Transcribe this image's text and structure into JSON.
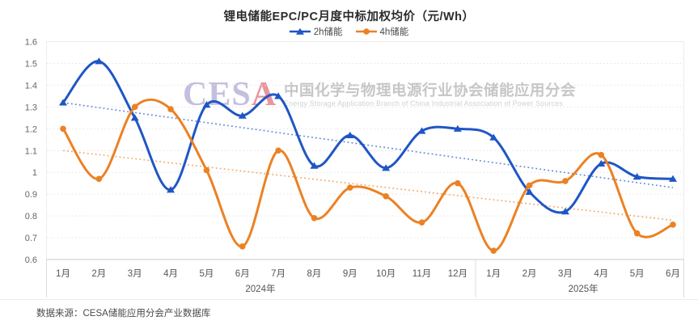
{
  "title": "锂电储能EPC/PC月度中标加权均价（元/Wh）",
  "watermark": {
    "logo_part1": "CES",
    "logo_part2": "A",
    "logo_color_main": "#c3bfdf",
    "logo_color_accent": "#e9959f",
    "cn": "中国化学与物理电源行业协会储能应用分会",
    "en": "Energy Storage Application Branch of China Industrial Association of Power Sources"
  },
  "footer": {
    "source": "数据来源：CESA储能应用分会产业数据库"
  },
  "axis_style": {
    "tick_color": "#666666",
    "label_color": "#555555",
    "grid_color": "#e4e4e4",
    "axis_line_color": "#c9c9c9",
    "separator_color": "#dddddd",
    "border_color": "#ececec"
  },
  "chart_data": {
    "type": "line",
    "title": "锂电储能EPC/PC月度中标加权均价（元/Wh）",
    "legend_position": "top",
    "grid": true,
    "smooth": true,
    "ylim": [
      0.6,
      1.6
    ],
    "yticks": [
      1.6,
      1.5,
      1.4,
      1.3,
      1.2,
      1.1,
      1,
      0.9,
      0.8,
      0.7,
      0.6
    ],
    "categories": [
      "1月",
      "2月",
      "3月",
      "4月",
      "5月",
      "6月",
      "7月",
      "8月",
      "9月",
      "10月",
      "11月",
      "12月",
      "1月",
      "2月",
      "3月",
      "4月",
      "5月",
      "6月"
    ],
    "year_groups": [
      {
        "label": "2024年",
        "from": 0,
        "to": 11
      },
      {
        "label": "2025年",
        "from": 12,
        "to": 17
      }
    ],
    "series": [
      {
        "name": "2h储能",
        "color": "#1f56c5",
        "marker": "triangle",
        "values": [
          1.32,
          1.51,
          1.25,
          0.92,
          1.31,
          1.26,
          1.35,
          1.03,
          1.17,
          1.02,
          1.19,
          1.2,
          1.16,
          0.91,
          0.82,
          1.04,
          0.98,
          0.97
        ],
        "trendline": {
          "start": 1.32,
          "end": 0.93,
          "color": "#5f84d6"
        }
      },
      {
        "name": "4h储能",
        "color": "#ec8123",
        "marker": "circle",
        "values": [
          1.2,
          0.97,
          1.3,
          1.29,
          1.01,
          0.66,
          1.1,
          0.79,
          0.93,
          0.89,
          0.77,
          0.95,
          0.64,
          0.94,
          0.96,
          1.08,
          0.72,
          0.76
        ],
        "trendline": {
          "start": 1.1,
          "end": 0.78,
          "color": "#f2a763"
        }
      }
    ]
  }
}
